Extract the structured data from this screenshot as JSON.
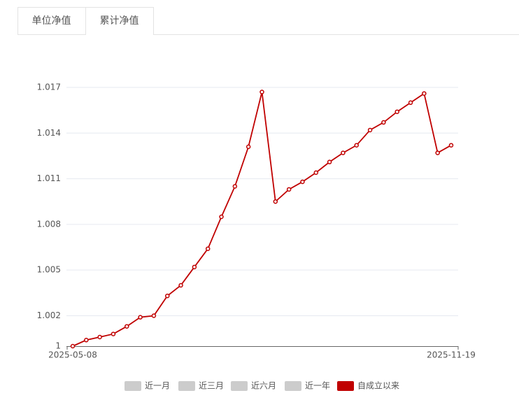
{
  "tabs": [
    "单位净值",
    "累计净值"
  ],
  "active_tab": 1,
  "chart_data": {
    "type": "line",
    "categories": [
      "2025-05-08",
      null,
      null,
      null,
      null,
      null,
      null,
      null,
      null,
      null,
      null,
      null,
      null,
      null,
      null,
      null,
      null,
      null,
      null,
      null,
      null,
      null,
      null,
      null,
      null,
      null,
      null,
      null,
      "2025-11-19"
    ],
    "series": [
      {
        "color": "#c00000",
        "values": [
          1.0,
          1.0004,
          1.0006,
          1.0008,
          1.0013,
          1.0019,
          1.002,
          1.0033,
          1.004,
          1.0052,
          1.0064,
          1.0085,
          1.0105,
          1.0131,
          1.0167,
          1.0095,
          1.0103,
          1.0108,
          1.0114,
          1.0121,
          1.0127,
          1.0132,
          1.0142,
          1.0147,
          1.0154,
          1.016,
          1.0166,
          1.0127,
          1.0132
        ]
      }
    ],
    "ylim": [
      1,
      1.017
    ],
    "yticks": [
      1,
      1.002,
      1.005,
      1.008,
      1.011,
      1.014,
      1.017
    ],
    "grid": true,
    "range_options": [
      "近一月",
      "近三月",
      "近六月",
      "近一年",
      "自成立以来"
    ],
    "selected_range": 4
  }
}
